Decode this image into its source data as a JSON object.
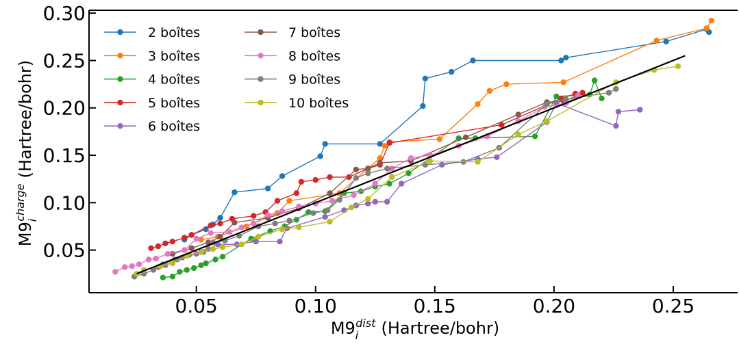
{
  "chart_data": {
    "type": "scatter",
    "title": "",
    "xlabel": {
      "base": "M9",
      "sub": "i",
      "sup": "dist",
      "units": "(Hartree/bohr)"
    },
    "ylabel": {
      "base": "M9",
      "sub": "i",
      "sup": "charge",
      "units": "(Hartree/bohr)"
    },
    "xlim": [
      0.005,
      0.277
    ],
    "ylim": [
      0.005,
      0.303
    ],
    "xticks": [
      "0.05",
      "0.10",
      "0.15",
      "0.20",
      "0.25"
    ],
    "yticks": [
      "0.05",
      "0.10",
      "0.15",
      "0.20",
      "0.25",
      "0.30"
    ],
    "grid": false,
    "legend": {
      "placement": "top-left",
      "columns": 2
    },
    "reference_line": {
      "x": [
        0.025,
        0.255
      ],
      "y": [
        0.025,
        0.255
      ],
      "color": "#000000"
    },
    "series": [
      {
        "name": "2 boîtes",
        "color": "#1f77b4",
        "x": [
          0.045,
          0.048,
          0.054,
          0.057,
          0.06,
          0.066,
          0.08,
          0.086,
          0.102,
          0.104,
          0.127,
          0.145,
          0.146,
          0.157,
          0.166,
          0.203,
          0.205,
          0.247,
          0.264,
          0.265
        ],
        "y": [
          0.061,
          0.066,
          0.072,
          0.077,
          0.084,
          0.111,
          0.115,
          0.128,
          0.149,
          0.162,
          0.162,
          0.202,
          0.231,
          0.238,
          0.25,
          0.25,
          0.253,
          0.27,
          0.283,
          0.28
        ]
      },
      {
        "name": "3 boîtes",
        "color": "#ff7f0e",
        "x": [
          0.052,
          0.059,
          0.071,
          0.084,
          0.089,
          0.11,
          0.127,
          0.129,
          0.131,
          0.152,
          0.168,
          0.173,
          0.18,
          0.204,
          0.243,
          0.264,
          0.266
        ],
        "y": [
          0.061,
          0.064,
          0.075,
          0.089,
          0.102,
          0.11,
          0.147,
          0.16,
          0.164,
          0.167,
          0.204,
          0.218,
          0.225,
          0.227,
          0.271,
          0.284,
          0.292
        ],
        "style": "connected"
      },
      {
        "name": "4 boîtes",
        "color": "#2ca02c",
        "x": [
          0.036,
          0.04,
          0.043,
          0.046,
          0.049,
          0.052,
          0.054,
          0.058,
          0.061,
          0.073,
          0.081,
          0.087,
          0.092,
          0.097,
          0.104,
          0.112,
          0.119,
          0.125,
          0.131,
          0.139,
          0.16,
          0.167,
          0.192,
          0.201,
          0.215,
          0.217,
          0.22
        ],
        "y": [
          0.021,
          0.022,
          0.027,
          0.029,
          0.031,
          0.034,
          0.036,
          0.04,
          0.043,
          0.062,
          0.07,
          0.075,
          0.082,
          0.09,
          0.091,
          0.11,
          0.112,
          0.117,
          0.12,
          0.131,
          0.168,
          0.168,
          0.17,
          0.212,
          0.214,
          0.229,
          0.21
        ]
      },
      {
        "name": "5 boîtes",
        "color": "#d62728",
        "x": [
          0.031,
          0.034,
          0.037,
          0.04,
          0.045,
          0.048,
          0.056,
          0.06,
          0.065,
          0.074,
          0.079,
          0.084,
          0.092,
          0.094,
          0.1,
          0.106,
          0.114,
          0.122,
          0.127,
          0.131,
          0.178,
          0.203,
          0.209,
          0.212
        ],
        "y": [
          0.052,
          0.054,
          0.057,
          0.059,
          0.063,
          0.066,
          0.076,
          0.078,
          0.083,
          0.086,
          0.09,
          0.102,
          0.11,
          0.122,
          0.124,
          0.127,
          0.127,
          0.136,
          0.14,
          0.163,
          0.182,
          0.21,
          0.215,
          0.216
        ]
      },
      {
        "name": "6 boîtes",
        "color": "#9467bd",
        "x": [
          0.034,
          0.037,
          0.04,
          0.042,
          0.044,
          0.05,
          0.052,
          0.055,
          0.059,
          0.067,
          0.075,
          0.085,
          0.088,
          0.104,
          0.112,
          0.117,
          0.122,
          0.125,
          0.13,
          0.136,
          0.153,
          0.168,
          0.176,
          0.197,
          0.201,
          0.226,
          0.227,
          0.236
        ],
        "y": [
          0.032,
          0.034,
          0.037,
          0.04,
          0.042,
          0.046,
          0.048,
          0.051,
          0.056,
          0.056,
          0.059,
          0.059,
          0.073,
          0.085,
          0.092,
          0.097,
          0.099,
          0.101,
          0.101,
          0.12,
          0.14,
          0.146,
          0.148,
          0.185,
          0.205,
          0.181,
          0.196,
          0.198
        ]
      },
      {
        "name": "7 boîtes",
        "color": "#8c564b",
        "x": [
          0.04,
          0.048,
          0.055,
          0.06,
          0.066,
          0.08,
          0.093,
          0.106,
          0.117,
          0.122,
          0.127,
          0.14,
          0.163,
          0.185,
          0.197,
          0.204,
          0.21
        ],
        "y": [
          0.046,
          0.052,
          0.058,
          0.064,
          0.079,
          0.084,
          0.094,
          0.11,
          0.135,
          0.136,
          0.142,
          0.144,
          0.169,
          0.193,
          0.206,
          0.207,
          0.213
        ]
      },
      {
        "name": "8 boîtes",
        "color": "#e377c2",
        "x": [
          0.016,
          0.02,
          0.023,
          0.026,
          0.03,
          0.033,
          0.038,
          0.045,
          0.05,
          0.056,
          0.064,
          0.069,
          0.074,
          0.08,
          0.086,
          0.093,
          0.1,
          0.107,
          0.116,
          0.125,
          0.132,
          0.14,
          0.148,
          0.16,
          0.172,
          0.185,
          0.196,
          0.205,
          0.21
        ],
        "y": [
          0.027,
          0.032,
          0.033,
          0.035,
          0.04,
          0.041,
          0.046,
          0.05,
          0.062,
          0.068,
          0.069,
          0.074,
          0.078,
          0.087,
          0.091,
          0.096,
          0.099,
          0.102,
          0.108,
          0.12,
          0.136,
          0.147,
          0.15,
          0.16,
          0.17,
          0.186,
          0.201,
          0.205,
          0.213
        ]
      },
      {
        "name": "9 boîtes",
        "color": "#7f7f7f",
        "x": [
          0.024,
          0.028,
          0.032,
          0.036,
          0.041,
          0.047,
          0.053,
          0.057,
          0.062,
          0.068,
          0.076,
          0.083,
          0.089,
          0.099,
          0.105,
          0.11,
          0.117,
          0.122,
          0.13,
          0.146,
          0.162,
          0.177,
          0.197,
          0.205,
          0.223,
          0.226
        ],
        "y": [
          0.022,
          0.025,
          0.029,
          0.035,
          0.04,
          0.045,
          0.048,
          0.058,
          0.06,
          0.065,
          0.075,
          0.078,
          0.081,
          0.089,
          0.092,
          0.103,
          0.126,
          0.131,
          0.136,
          0.14,
          0.143,
          0.158,
          0.204,
          0.209,
          0.216,
          0.22
        ]
      },
      {
        "name": "10 boîtes",
        "color": "#bcbd22",
        "x": [
          0.025,
          0.028,
          0.035,
          0.04,
          0.046,
          0.052,
          0.057,
          0.061,
          0.069,
          0.076,
          0.086,
          0.093,
          0.106,
          0.115,
          0.122,
          0.132,
          0.148,
          0.168,
          0.185,
          0.197,
          0.226,
          0.242,
          0.252
        ],
        "y": [
          0.025,
          0.029,
          0.033,
          0.036,
          0.044,
          0.048,
          0.051,
          0.053,
          0.056,
          0.064,
          0.072,
          0.074,
          0.08,
          0.095,
          0.104,
          0.127,
          0.144,
          0.143,
          0.172,
          0.186,
          0.227,
          0.24,
          0.244
        ]
      }
    ]
  }
}
